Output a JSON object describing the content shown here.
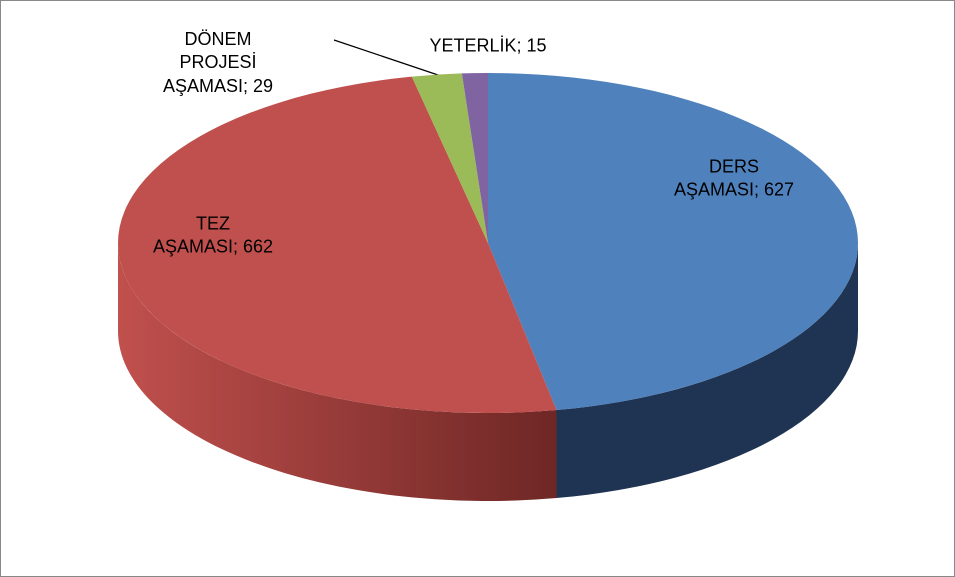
{
  "chart_data": {
    "type": "pie",
    "values": [
      627,
      662,
      29,
      15
    ],
    "value_labels": [
      "DERS\nAŞAMASI; 627",
      "TEZ\nAŞAMASI; 662",
      "DÖNEM\nPROJESİ\nAŞAMASI; 29",
      "YETERLİK; 15"
    ],
    "colors": [
      "#4f81bd",
      "#c0504d",
      "#9bbb59",
      "#8064a2"
    ],
    "side_colors": [
      "#1f3352",
      "#6e2725",
      "#5c7232",
      "#4a3862"
    ]
  }
}
